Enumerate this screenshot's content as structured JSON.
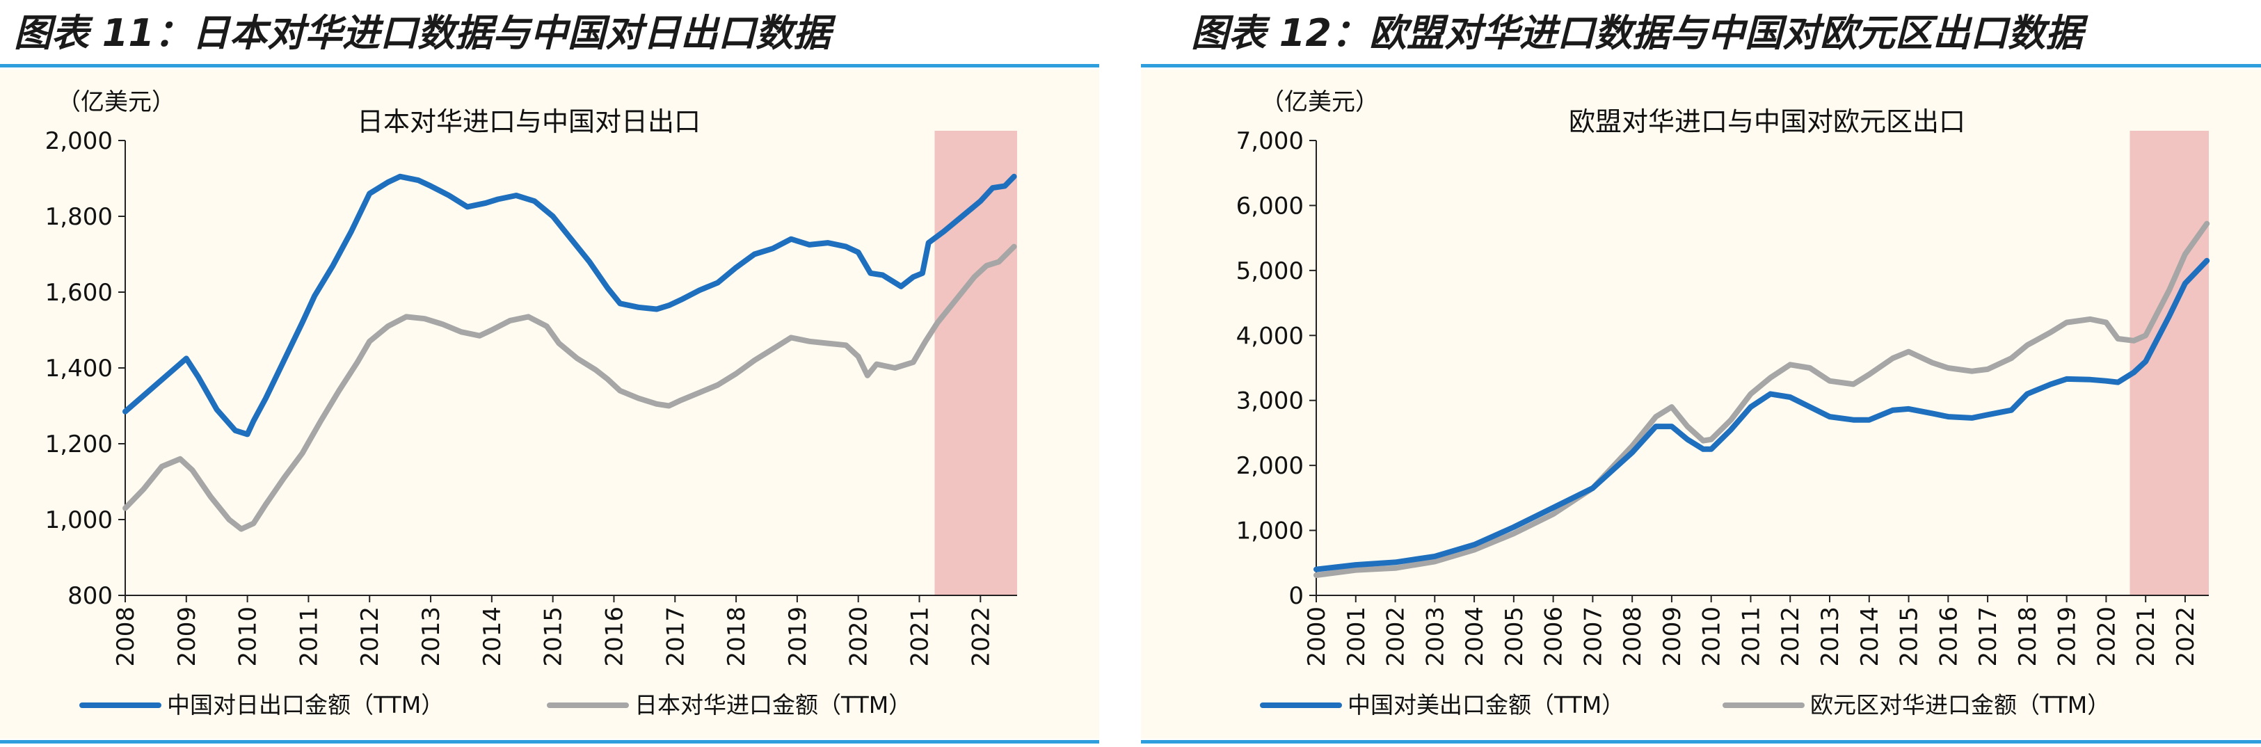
{
  "figures": [
    {
      "label": "图表 11：日本对华进口数据与中国对日出口数据",
      "chart_data": {
        "type": "line",
        "title": "日本对华进口与中国对日出口",
        "unit": "（亿美元）",
        "ylim": [
          800,
          2000
        ],
        "yticks": [
          800,
          1000,
          1200,
          1400,
          1600,
          1800,
          2000
        ],
        "ytick_labels": [
          "800",
          "1,000",
          "1,200",
          "1,400",
          "1,600",
          "1,800",
          "2,000"
        ],
        "xlim": [
          2008,
          2022.6
        ],
        "xticks": [
          "2008",
          "2009",
          "2010",
          "2011",
          "2012",
          "2013",
          "2014",
          "2015",
          "2016",
          "2017",
          "2018",
          "2019",
          "2020",
          "2021",
          "2022"
        ],
        "highlight_range": [
          2021.25,
          2022.6
        ],
        "highlight_color": "#f2c4c1",
        "series": [
          {
            "name": "中国对日出口金额（TTM）",
            "color": "#1f6fbf",
            "points": [
              [
                2008,
                1285
              ],
              [
                2008.5,
                1355
              ],
              [
                2009,
                1425
              ],
              [
                2009.2,
                1375
              ],
              [
                2009.5,
                1290
              ],
              [
                2009.8,
                1235
              ],
              [
                2010,
                1225
              ],
              [
                2010.1,
                1260
              ],
              [
                2010.3,
                1320
              ],
              [
                2010.6,
                1420
              ],
              [
                2010.9,
                1520
              ],
              [
                2011.1,
                1590
              ],
              [
                2011.4,
                1670
              ],
              [
                2011.7,
                1760
              ],
              [
                2012,
                1860
              ],
              [
                2012.3,
                1890
              ],
              [
                2012.5,
                1905
              ],
              [
                2012.8,
                1895
              ],
              [
                2013,
                1880
              ],
              [
                2013.3,
                1855
              ],
              [
                2013.6,
                1825
              ],
              [
                2013.9,
                1835
              ],
              [
                2014.1,
                1845
              ],
              [
                2014.4,
                1855
              ],
              [
                2014.7,
                1840
              ],
              [
                2015,
                1800
              ],
              [
                2015.3,
                1740
              ],
              [
                2015.6,
                1680
              ],
              [
                2015.9,
                1610
              ],
              [
                2016.1,
                1570
              ],
              [
                2016.4,
                1560
              ],
              [
                2016.7,
                1555
              ],
              [
                2016.9,
                1565
              ],
              [
                2017.1,
                1580
              ],
              [
                2017.4,
                1605
              ],
              [
                2017.7,
                1625
              ],
              [
                2018,
                1665
              ],
              [
                2018.3,
                1700
              ],
              [
                2018.6,
                1715
              ],
              [
                2018.9,
                1740
              ],
              [
                2019.2,
                1725
              ],
              [
                2019.5,
                1730
              ],
              [
                2019.8,
                1720
              ],
              [
                2020,
                1705
              ],
              [
                2020.2,
                1650
              ],
              [
                2020.4,
                1645
              ],
              [
                2020.7,
                1615
              ],
              [
                2020.9,
                1640
              ],
              [
                2021.05,
                1650
              ],
              [
                2021.15,
                1730
              ],
              [
                2021.4,
                1760
              ],
              [
                2021.7,
                1800
              ],
              [
                2022,
                1840
              ],
              [
                2022.2,
                1875
              ],
              [
                2022.4,
                1880
              ],
              [
                2022.55,
                1905
              ]
            ]
          },
          {
            "name": "日本对华进口金额（TTM）",
            "color": "#a6a6a6",
            "points": [
              [
                2008,
                1030
              ],
              [
                2008.3,
                1080
              ],
              [
                2008.6,
                1140
              ],
              [
                2008.9,
                1160
              ],
              [
                2009.1,
                1130
              ],
              [
                2009.4,
                1060
              ],
              [
                2009.7,
                1000
              ],
              [
                2009.9,
                975
              ],
              [
                2010.1,
                990
              ],
              [
                2010.3,
                1040
              ],
              [
                2010.6,
                1110
              ],
              [
                2010.9,
                1175
              ],
              [
                2011.2,
                1260
              ],
              [
                2011.5,
                1340
              ],
              [
                2011.8,
                1415
              ],
              [
                2012,
                1470
              ],
              [
                2012.3,
                1510
              ],
              [
                2012.6,
                1535
              ],
              [
                2012.9,
                1530
              ],
              [
                2013.2,
                1515
              ],
              [
                2013.5,
                1495
              ],
              [
                2013.8,
                1485
              ],
              [
                2014,
                1500
              ],
              [
                2014.3,
                1525
              ],
              [
                2014.6,
                1535
              ],
              [
                2014.9,
                1510
              ],
              [
                2015.1,
                1465
              ],
              [
                2015.4,
                1425
              ],
              [
                2015.7,
                1395
              ],
              [
                2015.9,
                1370
              ],
              [
                2016.1,
                1340
              ],
              [
                2016.4,
                1320
              ],
              [
                2016.7,
                1305
              ],
              [
                2016.9,
                1300
              ],
              [
                2017.1,
                1315
              ],
              [
                2017.4,
                1335
              ],
              [
                2017.7,
                1355
              ],
              [
                2018,
                1385
              ],
              [
                2018.3,
                1420
              ],
              [
                2018.6,
                1450
              ],
              [
                2018.9,
                1480
              ],
              [
                2019.2,
                1470
              ],
              [
                2019.5,
                1465
              ],
              [
                2019.8,
                1460
              ],
              [
                2020,
                1430
              ],
              [
                2020.15,
                1380
              ],
              [
                2020.3,
                1410
              ],
              [
                2020.6,
                1400
              ],
              [
                2020.9,
                1415
              ],
              [
                2021.1,
                1470
              ],
              [
                2021.3,
                1520
              ],
              [
                2021.6,
                1580
              ],
              [
                2021.9,
                1640
              ],
              [
                2022.1,
                1670
              ],
              [
                2022.3,
                1680
              ],
              [
                2022.55,
                1720
              ]
            ]
          }
        ]
      }
    },
    {
      "label": "图表 12：欧盟对华进口数据与中国对欧元区出口数据",
      "chart_data": {
        "type": "line",
        "title": "欧盟对华进口与中国对欧元区出口",
        "unit": "（亿美元）",
        "ylim": [
          0,
          7000
        ],
        "yticks": [
          0,
          1000,
          2000,
          3000,
          4000,
          5000,
          6000,
          7000
        ],
        "ytick_labels": [
          "0",
          "1,000",
          "2,000",
          "3,000",
          "4,000",
          "5,000",
          "6,000",
          "7,000"
        ],
        "xlim": [
          2000,
          2022.6
        ],
        "xticks": [
          "2000",
          "2001",
          "2002",
          "2003",
          "2004",
          "2005",
          "2006",
          "2007",
          "2008",
          "2009",
          "2010",
          "2011",
          "2012",
          "2013",
          "2014",
          "2015",
          "2016",
          "2017",
          "2018",
          "2019",
          "2020",
          "2021",
          "2022"
        ],
        "highlight_range": [
          2020.6,
          2022.6
        ],
        "highlight_color": "#f2c4c1",
        "series": [
          {
            "name": "中国对美出口金额（TTM）",
            "color": "#1f6fbf",
            "points": [
              [
                2000,
                400
              ],
              [
                2001,
                470
              ],
              [
                2002,
                510
              ],
              [
                2003,
                600
              ],
              [
                2004,
                780
              ],
              [
                2005,
                1050
              ],
              [
                2006,
                1350
              ],
              [
                2007,
                1650
              ],
              [
                2008,
                2200
              ],
              [
                2008.6,
                2600
              ],
              [
                2009,
                2600
              ],
              [
                2009.4,
                2400
              ],
              [
                2009.8,
                2250
              ],
              [
                2010,
                2250
              ],
              [
                2010.5,
                2550
              ],
              [
                2011,
                2900
              ],
              [
                2011.5,
                3100
              ],
              [
                2012,
                3050
              ],
              [
                2012.5,
                2900
              ],
              [
                2013,
                2750
              ],
              [
                2013.6,
                2700
              ],
              [
                2014,
                2700
              ],
              [
                2014.6,
                2850
              ],
              [
                2015,
                2870
              ],
              [
                2015.6,
                2800
              ],
              [
                2016,
                2750
              ],
              [
                2016.6,
                2730
              ],
              [
                2017,
                2780
              ],
              [
                2017.6,
                2850
              ],
              [
                2018,
                3100
              ],
              [
                2018.6,
                3250
              ],
              [
                2019,
                3330
              ],
              [
                2019.6,
                3320
              ],
              [
                2020,
                3300
              ],
              [
                2020.3,
                3280
              ],
              [
                2020.7,
                3430
              ],
              [
                2021,
                3600
              ],
              [
                2021.3,
                3950
              ],
              [
                2021.6,
                4300
              ],
              [
                2022,
                4800
              ],
              [
                2022.55,
                5150
              ]
            ]
          },
          {
            "name": "欧元区对华进口金额（TTM）",
            "color": "#a6a6a6",
            "points": [
              [
                2000,
                310
              ],
              [
                2001,
                390
              ],
              [
                2002,
                420
              ],
              [
                2003,
                520
              ],
              [
                2004,
                700
              ],
              [
                2005,
                950
              ],
              [
                2006,
                1250
              ],
              [
                2007,
                1650
              ],
              [
                2008,
                2300
              ],
              [
                2008.6,
                2750
              ],
              [
                2009,
                2900
              ],
              [
                2009.4,
                2600
              ],
              [
                2009.8,
                2380
              ],
              [
                2010,
                2400
              ],
              [
                2010.5,
                2700
              ],
              [
                2011,
                3100
              ],
              [
                2011.5,
                3350
              ],
              [
                2012,
                3550
              ],
              [
                2012.5,
                3500
              ],
              [
                2013,
                3300
              ],
              [
                2013.6,
                3250
              ],
              [
                2014,
                3400
              ],
              [
                2014.6,
                3650
              ],
              [
                2015,
                3750
              ],
              [
                2015.6,
                3580
              ],
              [
                2016,
                3500
              ],
              [
                2016.6,
                3450
              ],
              [
                2017,
                3480
              ],
              [
                2017.6,
                3650
              ],
              [
                2018,
                3850
              ],
              [
                2018.6,
                4050
              ],
              [
                2019,
                4200
              ],
              [
                2019.6,
                4250
              ],
              [
                2020,
                4200
              ],
              [
                2020.3,
                3950
              ],
              [
                2020.7,
                3920
              ],
              [
                2021,
                4000
              ],
              [
                2021.3,
                4350
              ],
              [
                2021.6,
                4700
              ],
              [
                2022,
                5250
              ],
              [
                2022.55,
                5720
              ]
            ]
          }
        ]
      }
    }
  ]
}
